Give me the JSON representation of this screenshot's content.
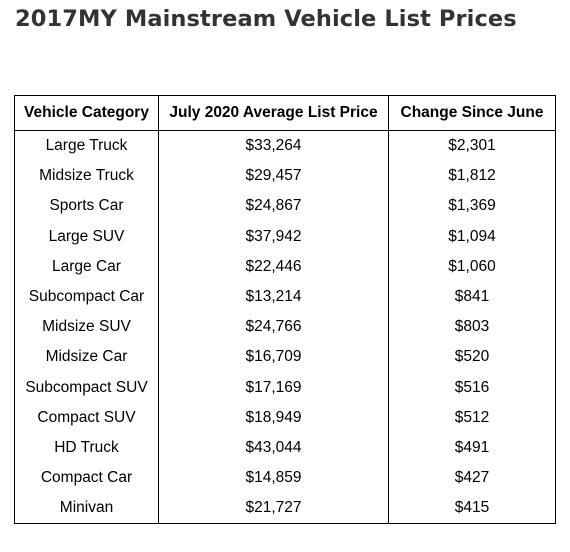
{
  "title": "2017MY Mainstream Vehicle List Prices",
  "chart_data": {
    "type": "table",
    "columns": [
      "Vehicle Category",
      "July 2020 Average List Price",
      "Change Since June"
    ],
    "rows": [
      {
        "category": "Large Truck",
        "price": "$33,264",
        "change": "$2,301"
      },
      {
        "category": "Midsize Truck",
        "price": "$29,457",
        "change": "$1,812"
      },
      {
        "category": "Sports Car",
        "price": "$24,867",
        "change": "$1,369"
      },
      {
        "category": "Large SUV",
        "price": "$37,942",
        "change": "$1,094"
      },
      {
        "category": "Large Car",
        "price": "$22,446",
        "change": "$1,060"
      },
      {
        "category": "Subcompact Car",
        "price": "$13,214",
        "change": "$841"
      },
      {
        "category": "Midsize SUV",
        "price": "$24,766",
        "change": "$803"
      },
      {
        "category": "Midsize Car",
        "price": "$16,709",
        "change": "$520"
      },
      {
        "category": "Subcompact SUV",
        "price": "$17,169",
        "change": "$516"
      },
      {
        "category": "Compact SUV",
        "price": "$18,949",
        "change": "$512"
      },
      {
        "category": "HD Truck",
        "price": "$43,044",
        "change": "$491"
      },
      {
        "category": "Compact Car",
        "price": "$14,859",
        "change": "$427"
      },
      {
        "category": "Minivan",
        "price": "$21,727",
        "change": "$415"
      }
    ]
  }
}
